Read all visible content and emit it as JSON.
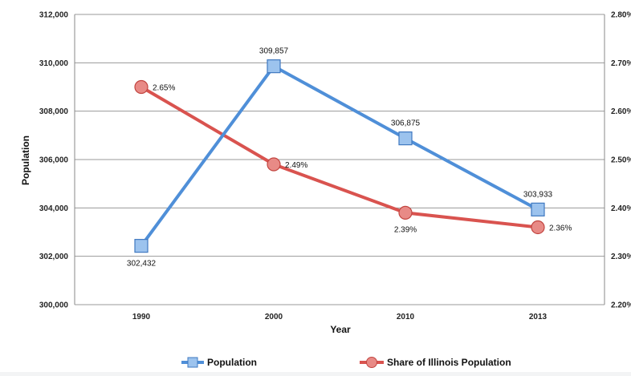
{
  "chart_data": {
    "type": "line",
    "categories": [
      "1990",
      "2000",
      "2010",
      "2013"
    ],
    "series": [
      {
        "name": "Population",
        "axis": "left",
        "color": "#4f8fd8",
        "marker": "square",
        "values": [
          302432,
          309857,
          306875,
          303933
        ],
        "labels": [
          "302,432",
          "309,857",
          "306,875",
          "303,933"
        ]
      },
      {
        "name": "Share of Illinois Population",
        "axis": "right",
        "color": "#d9534f",
        "marker": "circle",
        "values": [
          2.65,
          2.49,
          2.39,
          2.36
        ],
        "labels": [
          "2.65%",
          "2.49%",
          "2.39%",
          "2.36%"
        ]
      }
    ],
    "xlabel": "Year",
    "ylabel": "Population",
    "ylim": [
      300000,
      312000
    ],
    "y_ticks": [
      "300,000",
      "302,000",
      "304,000",
      "306,000",
      "308,000",
      "310,000",
      "312,000"
    ],
    "y2lim": [
      2.2,
      2.8
    ],
    "y2_ticks": [
      "2.20%",
      "2.30%",
      "2.40%",
      "2.50%",
      "2.60%",
      "2.70%",
      "2.80%"
    ],
    "grid": true,
    "legend_position": "bottom"
  }
}
